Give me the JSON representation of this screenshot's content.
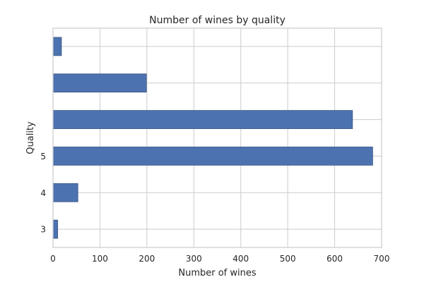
{
  "chart_data": {
    "type": "bar",
    "orientation": "horizontal",
    "title": "Number of wines by quality",
    "xlabel": "Number of wines",
    "ylabel": "Quality",
    "categories": [
      "3",
      "4",
      "5",
      "",
      "",
      ""
    ],
    "values": [
      10,
      53,
      681,
      638,
      199,
      18
    ],
    "xlim": [
      0,
      700
    ],
    "xticks": [
      0,
      100,
      200,
      300,
      400,
      500,
      600,
      700
    ],
    "grid": true,
    "legend": "none",
    "bar_color": "#4c72b0",
    "bar_edge_color": "#3a5683",
    "grid_color": "#cccccc",
    "spine_color": "#cccccc"
  }
}
